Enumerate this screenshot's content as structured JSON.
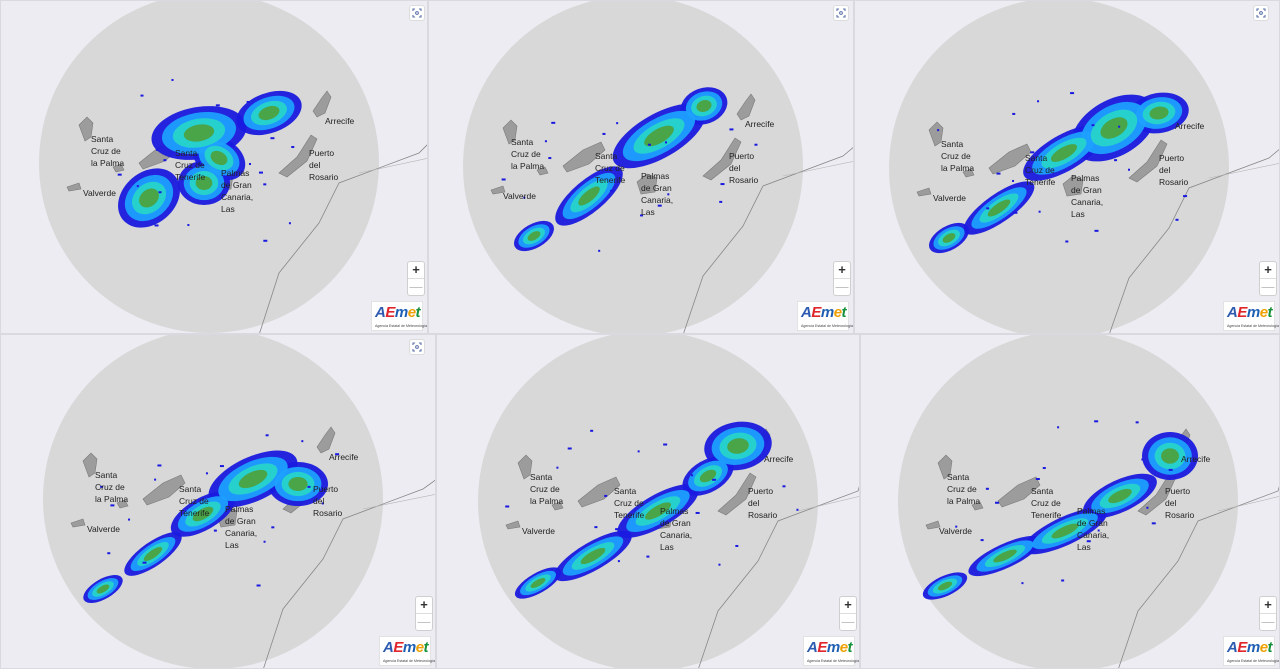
{
  "logo": {
    "letters": [
      "A",
      "E",
      "m",
      "e",
      "t"
    ],
    "subtitle": "Agencia Estatal de Meteorología"
  },
  "controls": {
    "zoom_in": "+",
    "zoom_out": "—"
  },
  "colors": {
    "panel_bg": "#ececf2",
    "radar_disc": "#d8d8d8",
    "island": "#9c9c9c",
    "coast": "#888888",
    "echo_weak": "#1a1adf",
    "echo_light": "#1ea0ff",
    "echo_mid": "#28d6c8",
    "echo_moderate": "#4f9f3a",
    "logo_colors": [
      "#2c5bb0",
      "#e0262a",
      "#1e5fb3",
      "#f0a000",
      "#17903c"
    ]
  },
  "places": {
    "santa_cruz_la_palma": "Santa\nCruz de\nla Palma",
    "valverde": "Valverde",
    "santa_cruz_tenerife": "Santa\nCruz de\nTenerife",
    "las_palmas": "Palmas\nde Gran\nCanaria,\nLas",
    "arrecife": "Arrecife",
    "puerto_rosario": "Puerto\ndel\nRosario"
  },
  "panels": [
    {
      "id": "radar-frame-1",
      "fullscreen_icon": "fullscreen-icon"
    },
    {
      "id": "radar-frame-2",
      "fullscreen_icon": "fullscreen-icon"
    },
    {
      "id": "radar-frame-3",
      "fullscreen_icon": "fullscreen-icon"
    },
    {
      "id": "radar-frame-4",
      "fullscreen_icon": "fullscreen-icon"
    },
    {
      "id": "radar-frame-5",
      "fullscreen_icon": "none"
    },
    {
      "id": "radar-frame-6",
      "fullscreen_icon": "none"
    }
  ]
}
